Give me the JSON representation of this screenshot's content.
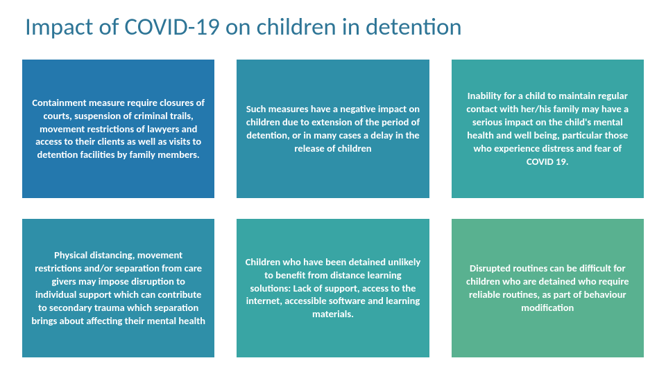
{
  "title": "Impact of COVID-19 on children in detention",
  "cells": [
    {
      "text": "Containment measure require closures of courts, suspension of criminal trails, movement restrictions of lawyers and access to their clients as well as visits to detention facilities by family members.",
      "bg": "#2478ad"
    },
    {
      "text": "Such measures have a negative impact on children due to extension of the period of detention, or in many cases a delay in the release of children",
      "bg": "#2f8fa8"
    },
    {
      "text": "Inability for a child to maintain regular contact with her/his family may have a serious impact on the child's mental health and well being, particular those who experience distress and fear of COVID 19.",
      "bg": "#39a5a4"
    },
    {
      "text": "Physical distancing, movement restrictions and/or separation from care givers may impose disruption to individual support which can contribute to secondary trauma which separation brings about affecting their mental health",
      "bg": "#2f8fa8"
    },
    {
      "text": "Children who have been detained unlikely to benefit from distance learning solutions: Lack of support, access to the internet, accessible software and learning materials.",
      "bg": "#39a5a4"
    },
    {
      "text": "Disrupted routines can be difficult for children who are detained who require reliable routines, as part of behaviour modification",
      "bg": "#59b190"
    }
  ],
  "title_color": "#2e7596",
  "text_color": "#ffffff",
  "font_family": "Segoe UI, Calibri, Arial, sans-serif",
  "title_fontsize": 35,
  "cell_fontsize": 14.5
}
